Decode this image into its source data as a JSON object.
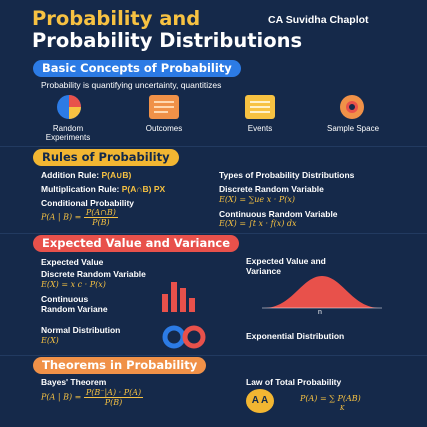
{
  "header": {
    "title_line1": "Probability and",
    "title_line2": "Probability Distributions",
    "author": "CA Suvidha Chaplot"
  },
  "basic": {
    "heading": "Basic Concepts of Probability",
    "description": "Probability is quantifying uncertainty, quantitizes",
    "icons": [
      {
        "label": "Random Experiments",
        "icon": "pie-chart-icon"
      },
      {
        "label": "Outcomes",
        "icon": "document-icon"
      },
      {
        "label": "Events",
        "icon": "list-icon"
      },
      {
        "label": "Sample Space",
        "icon": "donut-icon"
      }
    ]
  },
  "rules": {
    "heading": "Rules of Probability",
    "addition_label": "Addition Rule:",
    "addition_formula": "P(A∪B)",
    "multiplication_label": "Multiplication Rule:",
    "multiplication_formula": "P(A∩B) PX",
    "conditional_label": "Conditional Probability",
    "conditional_lhs": "P(A | B) =",
    "conditional_num": "P(A∩B)",
    "conditional_den": "P(B)",
    "types_heading": "Types of Probability Distributions",
    "discrete_label": "Discrete Random Variable",
    "discrete_formula": "E(X) = ∑ue  x · P(x)",
    "continuous_label": "Continuous Random Variable",
    "continuous_formula": "E(X) = ∫t x · f(x) dx"
  },
  "expected": {
    "heading": "Expected Value and Variance",
    "ev_label": "Expected Value",
    "discrete_label": "Discrete Random Variable",
    "discrete_formula": "E(X) = x c · P(x)",
    "continuous_label_1": "Continuous",
    "continuous_label_2": "Random Variane",
    "right_label_1": "Expected Value and",
    "right_label_2": "Variance",
    "curve_tick": "n",
    "normal_label": "Normal Distribution",
    "normal_formula": "E(X)",
    "exponential_label": "Exponential Distribution"
  },
  "theorems": {
    "heading": "Theorems in Probability",
    "bayes_label": "Bayes' Theorem",
    "bayes_lhs": "P(A | B) =",
    "bayes_num": "P(B⁻|A) · P(A)",
    "bayes_den": "P(B)",
    "total_label": "Law of Total Probability",
    "total_formula": "P(A) = ∑ P(AB)",
    "total_sub": "K",
    "badge": "A A"
  },
  "colors": {
    "background": "#15294a",
    "gold": "#f7c242",
    "blue": "#2c7be5",
    "red": "#e8514b",
    "orange": "#f09148"
  }
}
